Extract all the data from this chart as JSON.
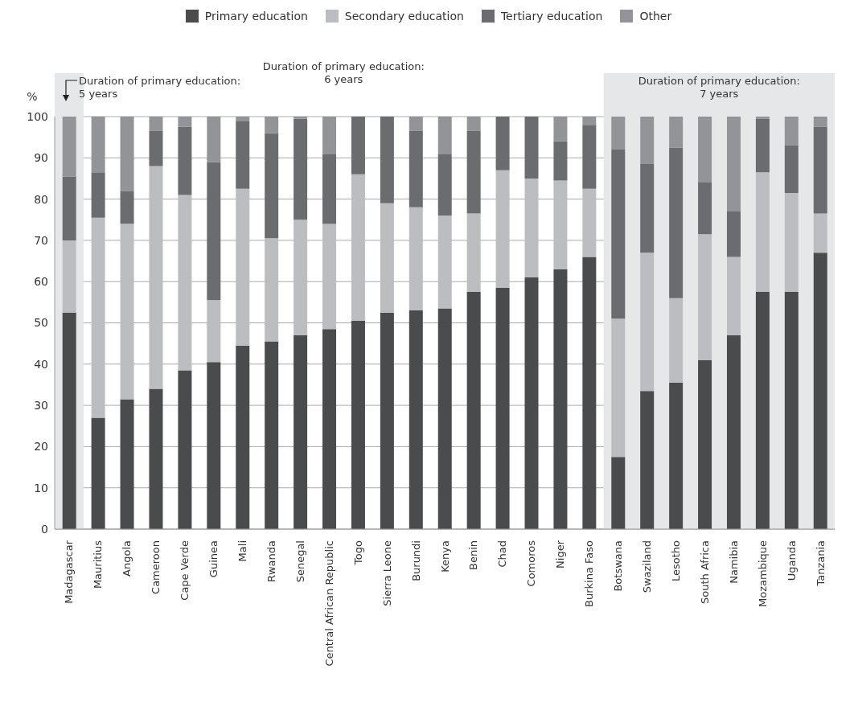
{
  "chart_data": {
    "type": "bar",
    "stacked": true,
    "ylabel": "%",
    "ylim": [
      0,
      100
    ],
    "yticks": [
      0,
      10,
      20,
      30,
      40,
      50,
      60,
      70,
      80,
      90,
      100
    ],
    "grid": "y",
    "legend": "top",
    "categories": [
      "Madagascar",
      "Mauritius",
      "Angola",
      "Cameroon",
      "Cape Verde",
      "Guinea",
      "Mali",
      "Rwanda",
      "Senegal",
      "Central African Republic",
      "Togo",
      "Sierra Leone",
      "Burundi",
      "Kenya",
      "Benin",
      "Chad",
      "Comoros",
      "Niger",
      "Burkina Faso",
      "Botswana",
      "Swaziland",
      "Lesotho",
      "South Africa",
      "Namibia",
      "Mozambique",
      "Uganda",
      "Tanzania"
    ],
    "series": [
      {
        "name": "Primary education",
        "color": "#4a4b4d",
        "values": [
          52.5,
          27,
          31.5,
          34,
          38.5,
          40.5,
          44.5,
          45.5,
          47,
          48.5,
          50.5,
          52.5,
          53,
          53.5,
          57.5,
          58.5,
          61,
          63,
          66,
          17.5,
          33.5,
          35.5,
          41,
          47,
          57.5,
          57.5,
          67
        ]
      },
      {
        "name": "Secondary education",
        "color": "#bcbdc0",
        "values": [
          17.5,
          48.5,
          42.5,
          54,
          42.5,
          15,
          38,
          25,
          28,
          25.5,
          35.5,
          26.5,
          25,
          22.5,
          19,
          28.5,
          24,
          21.5,
          16.5,
          33.5,
          33.5,
          20.5,
          30.5,
          19,
          29,
          24,
          9.5
        ]
      },
      {
        "name": "Tertiary education",
        "color": "#6b6c70",
        "values": [
          15.5,
          11,
          8,
          8.5,
          16.5,
          33.5,
          16.5,
          25.5,
          24.5,
          17,
          14,
          21,
          18.5,
          15,
          20,
          13,
          15,
          9.5,
          15.5,
          41,
          21.5,
          36.5,
          12.5,
          11,
          13,
          11.5,
          21
        ]
      },
      {
        "name": "Other",
        "color": "#939497",
        "values": [
          14.5,
          13.5,
          18,
          3.5,
          2.5,
          11,
          1,
          4,
          0.5,
          9,
          0,
          0,
          3.5,
          9,
          3.5,
          0,
          0,
          6,
          2,
          8,
          11.5,
          7.5,
          16,
          23,
          0.5,
          7,
          2.5
        ]
      }
    ],
    "bands": [
      {
        "axis": "x",
        "from": "Madagascar",
        "to": "Madagascar",
        "label": "Duration of primary education: 5 years",
        "color": "#e6e7e8"
      },
      {
        "axis": "x",
        "from": "Botswana",
        "to": "Tanzania",
        "label": "Duration of primary education: 7 years",
        "color": "#e6e7e8"
      }
    ],
    "annotations": [
      "Duration of primary education: 6 years"
    ]
  }
}
